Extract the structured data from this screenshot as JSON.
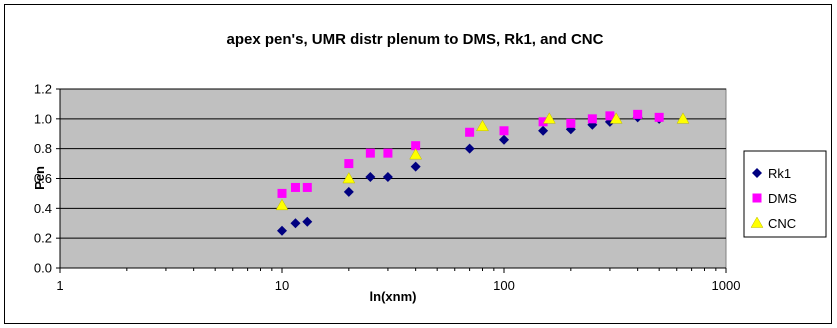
{
  "chart_data": {
    "type": "scatter",
    "title": "apex pen's, UMR distr plenum to DMS, Rk1, and CNC",
    "xlabel": "ln(xnm)",
    "ylabel": "Pen",
    "x_scale": "log",
    "xlim": [
      1,
      1000
    ],
    "ylim": [
      0.0,
      1.2
    ],
    "x_ticks": [
      "1",
      "10",
      "100",
      "1000"
    ],
    "y_ticks": [
      "0.0",
      "0.2",
      "0.4",
      "0.6",
      "0.8",
      "1.0",
      "1.2"
    ],
    "grid": true,
    "plot_background": "#c0c0c0",
    "legend": {
      "position": "right"
    },
    "series": [
      {
        "name": "Rk1",
        "marker": "diamond",
        "color": "#000080",
        "x": [
          10,
          11.5,
          13,
          20,
          25,
          30,
          40,
          70,
          100,
          150,
          200,
          250,
          300,
          400,
          500
        ],
        "y": [
          0.25,
          0.3,
          0.31,
          0.51,
          0.61,
          0.61,
          0.68,
          0.8,
          0.86,
          0.92,
          0.93,
          0.96,
          0.98,
          1.01,
          1.0
        ]
      },
      {
        "name": "DMS",
        "marker": "square",
        "color": "#ff00ff",
        "x": [
          10,
          11.5,
          13,
          20,
          25,
          30,
          40,
          70,
          100,
          150,
          200,
          250,
          300,
          400,
          500
        ],
        "y": [
          0.5,
          0.54,
          0.54,
          0.7,
          0.77,
          0.77,
          0.82,
          0.91,
          0.92,
          0.98,
          0.97,
          1.0,
          1.02,
          1.03,
          1.01
        ]
      },
      {
        "name": "CNC",
        "marker": "triangle",
        "color": "#ffff00",
        "x": [
          10,
          20,
          40,
          80,
          160,
          320,
          640
        ],
        "y": [
          0.42,
          0.6,
          0.76,
          0.95,
          1.0,
          1.0,
          1.0
        ]
      }
    ]
  }
}
